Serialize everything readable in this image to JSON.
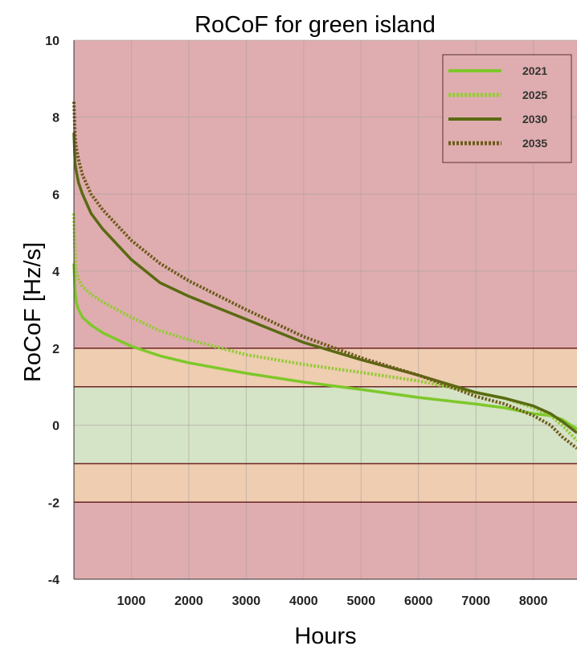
{
  "chart_data": {
    "type": "line",
    "title": "RoCoF for green island",
    "xlabel": "Hours",
    "ylabel": "RoCoF [Hz/s]",
    "xlim": [
      0,
      8760
    ],
    "ylim": [
      -4,
      10
    ],
    "xticks": [
      1000,
      2000,
      3000,
      4000,
      5000,
      6000,
      7000,
      8000
    ],
    "yticks": [
      10,
      8,
      6,
      4,
      2,
      0,
      -2,
      -4
    ],
    "grid": true,
    "legend_position": "top-right",
    "bands": [
      {
        "from": 2,
        "to": 10,
        "color": "#dfadaf"
      },
      {
        "from": 1,
        "to": 2,
        "color": "#efcdb1"
      },
      {
        "from": -1,
        "to": 1,
        "color": "#d5e3c6"
      },
      {
        "from": -2,
        "to": -1,
        "color": "#efcdb1"
      },
      {
        "from": -4,
        "to": -2,
        "color": "#dfadaf"
      }
    ],
    "band_lines": [
      2,
      1,
      -1,
      -2
    ],
    "series": [
      {
        "name": "2021",
        "color": "#7ec82a",
        "style": "solid",
        "x": [
          0,
          20,
          40,
          80,
          150,
          300,
          500,
          1000,
          1500,
          2000,
          3000,
          4000,
          5000,
          6000,
          7000,
          7500,
          8000,
          8300,
          8500,
          8760
        ],
        "y": [
          4.2,
          3.5,
          3.2,
          3.0,
          2.8,
          2.6,
          2.4,
          2.05,
          1.8,
          1.62,
          1.35,
          1.12,
          0.93,
          0.72,
          0.55,
          0.45,
          0.3,
          0.25,
          0.15,
          -0.1
        ]
      },
      {
        "name": "2025",
        "color": "#96c93a",
        "style": "dotted",
        "x": [
          0,
          20,
          40,
          80,
          150,
          300,
          500,
          1000,
          1500,
          2000,
          3000,
          4000,
          5000,
          6000,
          7000,
          7500,
          8000,
          8300,
          8500,
          8760
        ],
        "y": [
          5.5,
          4.5,
          4.0,
          3.8,
          3.6,
          3.4,
          3.2,
          2.8,
          2.45,
          2.22,
          1.83,
          1.58,
          1.37,
          1.15,
          0.85,
          0.7,
          0.45,
          0.25,
          0.0,
          -0.4
        ]
      },
      {
        "name": "2030",
        "color": "#5a6a12",
        "style": "solid",
        "x": [
          0,
          20,
          40,
          80,
          150,
          300,
          500,
          1000,
          1500,
          2000,
          3000,
          4000,
          5000,
          6000,
          7000,
          7500,
          8000,
          8300,
          8500,
          8760
        ],
        "y": [
          7.6,
          6.8,
          6.6,
          6.3,
          6.0,
          5.5,
          5.1,
          4.3,
          3.7,
          3.35,
          2.75,
          2.15,
          1.7,
          1.3,
          0.85,
          0.7,
          0.5,
          0.3,
          0.1,
          -0.2
        ]
      },
      {
        "name": "2035",
        "color": "#6e5a1c",
        "style": "dotted",
        "x": [
          0,
          20,
          40,
          80,
          150,
          300,
          500,
          1000,
          1500,
          2000,
          3000,
          4000,
          5000,
          6000,
          7000,
          7500,
          8000,
          8300,
          8500,
          8760
        ],
        "y": [
          8.4,
          7.5,
          7.2,
          6.9,
          6.5,
          6.0,
          5.6,
          4.8,
          4.2,
          3.75,
          3.0,
          2.3,
          1.75,
          1.3,
          0.75,
          0.55,
          0.25,
          0.0,
          -0.3,
          -0.6
        ]
      }
    ]
  }
}
